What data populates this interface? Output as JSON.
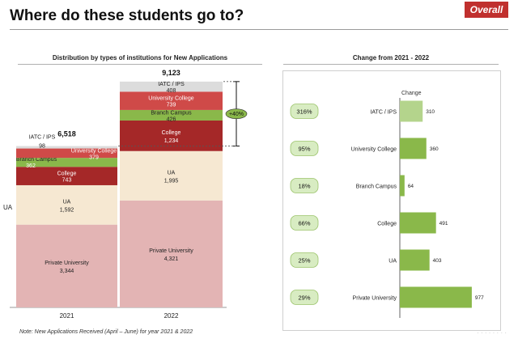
{
  "header": {
    "title": "Where do these students go to?",
    "badge": "Overall"
  },
  "footnote": "Note: New Applications Received (April – June) for year 2021 & 2022",
  "chart_data": [
    {
      "type": "bar",
      "stacked": true,
      "title": "Distribution by types of institutions for New Applications",
      "categories": [
        "2021",
        "2022"
      ],
      "series": [
        {
          "name": "Private University",
          "values": [
            3344,
            4321
          ],
          "color": "#e3b4b4"
        },
        {
          "name": "UA",
          "values": [
            1592,
            1995
          ],
          "color": "#f6e8d2"
        },
        {
          "name": "College",
          "values": [
            743,
            1234
          ],
          "color": "#a52828"
        },
        {
          "name": "Branch Campus",
          "values": [
            362,
            426
          ],
          "color": "#8ab84a"
        },
        {
          "name": "University College",
          "values": [
            379,
            739
          ],
          "color": "#cf4a48"
        },
        {
          "name": "IATC / IPS",
          "values": [
            98,
            408
          ],
          "color": "#dcdcdc"
        }
      ],
      "totals": [
        "6,518",
        "9,123"
      ],
      "growth_label": "+40%",
      "side_label": "UA",
      "segment_labels": [
        [
          [
            "Private University",
            "3,344"
          ],
          [
            "UA",
            "1,592"
          ],
          [
            "College",
            "743"
          ],
          [
            "Branch Campus",
            "362"
          ],
          [
            "University College",
            "379"
          ],
          [
            "IATC / IPS",
            "98"
          ]
        ],
        [
          [
            "Private University",
            "4,321"
          ],
          [
            "UA",
            "1,995"
          ],
          [
            "College",
            "1,234"
          ],
          [
            "Branch Campus",
            "426"
          ],
          [
            "University College",
            "739"
          ],
          [
            "IATC / IPS",
            "408"
          ]
        ]
      ]
    },
    {
      "type": "bar",
      "orientation": "horizontal",
      "title": "Change from  2021 - 2022",
      "column_label": "Change",
      "categories": [
        "IATC / IPS",
        "University College",
        "Branch Campus",
        "College",
        "UA",
        "Private University"
      ],
      "values": [
        310,
        360,
        64,
        491,
        403,
        977
      ],
      "percent_labels": [
        "316%",
        "95%",
        "18%",
        "66%",
        "25%",
        "29%"
      ],
      "color": "#8ab84a",
      "highlight_color": "#b4d48c"
    }
  ]
}
